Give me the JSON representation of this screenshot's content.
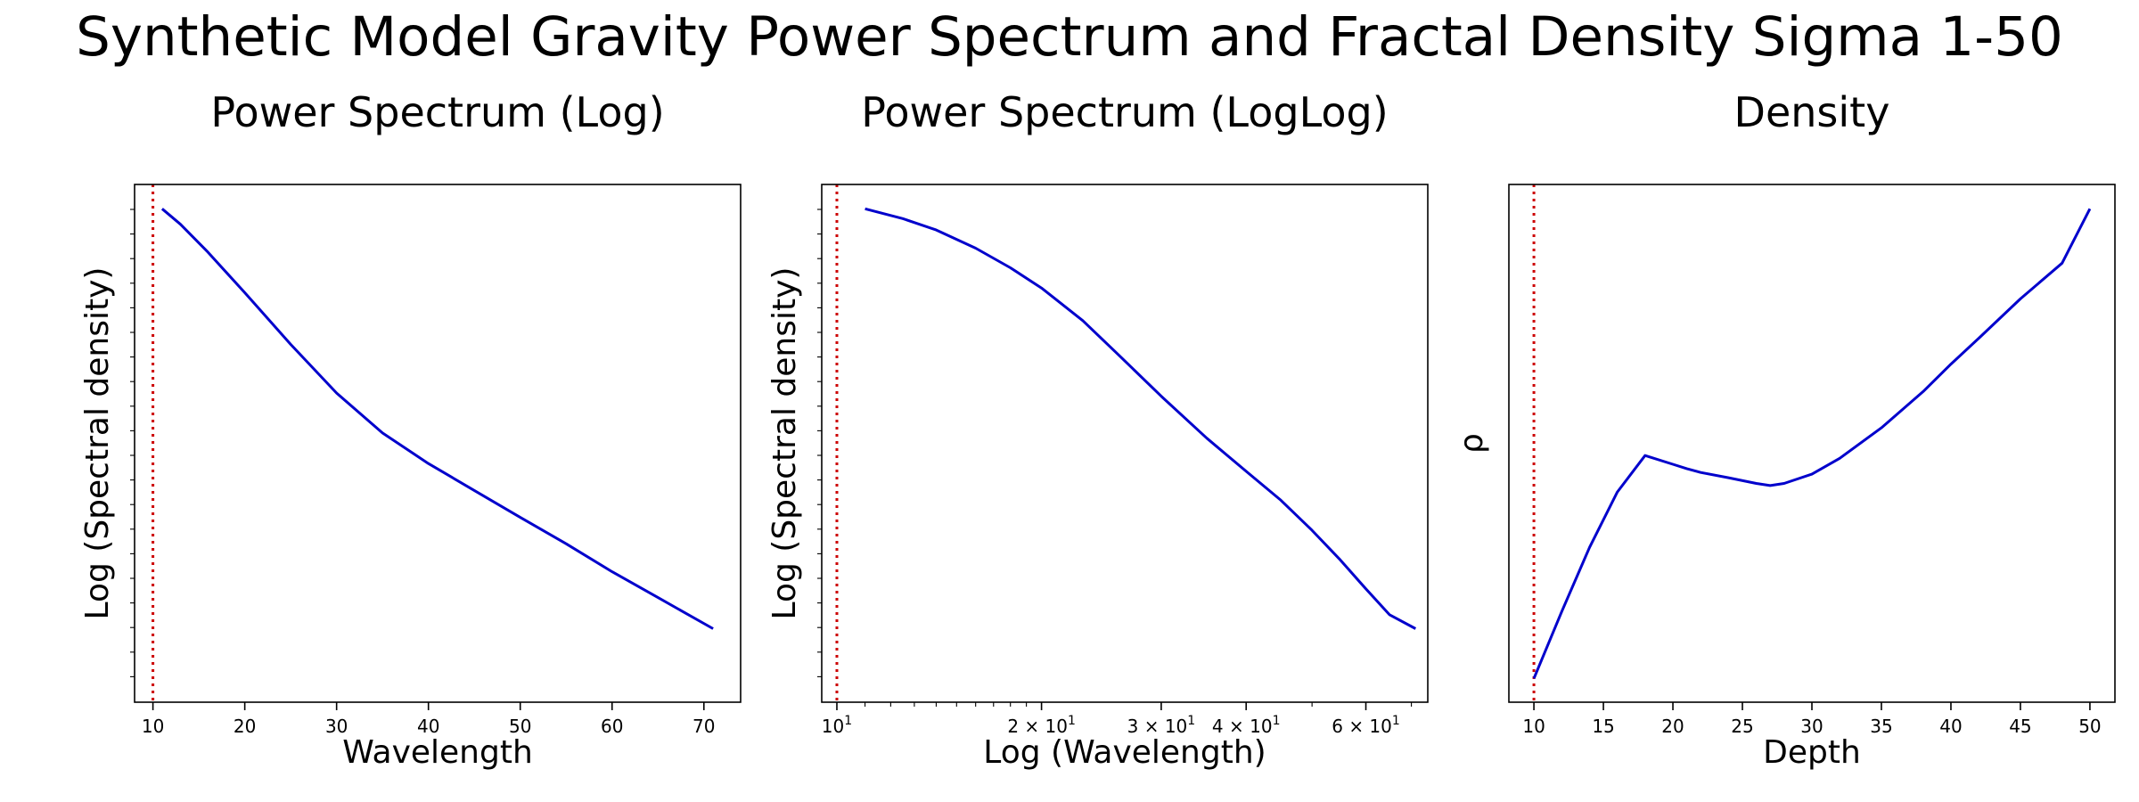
{
  "suptitle": "Synthetic Model Gravity Power Spectrum and Fractal Density Sigma 1-50",
  "chart_data": [
    {
      "type": "line",
      "title": "Power Spectrum (Log)",
      "xlabel": "Wavelength",
      "ylabel": "Log (Spectral density)",
      "xscale": "linear",
      "xlim": [
        8,
        74
      ],
      "ylim": [
        0,
        1
      ],
      "xticks": [
        10,
        20,
        30,
        40,
        50,
        60,
        70
      ],
      "xticklabels": [
        "10",
        "20",
        "30",
        "40",
        "50",
        "60",
        "70"
      ],
      "y_tick_labels_shown": false,
      "vline_x": 10,
      "series": [
        {
          "x": [
            11,
            13,
            16,
            20,
            25,
            30,
            35,
            40,
            45,
            50,
            55,
            60,
            65,
            71
          ],
          "y": [
            0.953,
            0.923,
            0.869,
            0.791,
            0.691,
            0.597,
            0.52,
            0.461,
            0.409,
            0.357,
            0.306,
            0.252,
            0.202,
            0.142
          ]
        }
      ]
    },
    {
      "type": "line",
      "title": "Power Spectrum (LogLog)",
      "xlabel": "Log (Wavelength)",
      "ylabel": "Log (Spectral density)",
      "xscale": "log",
      "xlim": [
        9.5,
        74
      ],
      "ylim": [
        0,
        1
      ],
      "xticks": [
        10,
        20,
        30,
        40,
        60
      ],
      "xticklabels": [
        "10",
        "2 × 10",
        "3 × 10",
        "4 × 10",
        "6 × 10"
      ],
      "xtick_exponent": "1",
      "y_tick_labels_shown": false,
      "vline_x": 10,
      "series": [
        {
          "x": [
            11,
            12.5,
            14,
            16,
            18,
            20,
            23,
            26,
            30,
            35,
            40,
            45,
            50,
            55,
            60,
            65,
            71
          ],
          "y": [
            0.953,
            0.934,
            0.912,
            0.877,
            0.839,
            0.8,
            0.737,
            0.67,
            0.591,
            0.51,
            0.446,
            0.39,
            0.332,
            0.275,
            0.219,
            0.169,
            0.142
          ]
        }
      ]
    },
    {
      "type": "line",
      "title": "Density",
      "xlabel": "Depth",
      "ylabel": "ρ",
      "xscale": "linear",
      "xlim": [
        8.2,
        51.8
      ],
      "ylim": [
        0,
        1
      ],
      "xticks": [
        10,
        15,
        20,
        25,
        30,
        35,
        40,
        45,
        50
      ],
      "xticklabels": [
        "10",
        "15",
        "20",
        "25",
        "30",
        "35",
        "40",
        "45",
        "50"
      ],
      "y_tick_labels_shown": false,
      "vline_x": 10,
      "series": [
        {
          "x": [
            10,
            12,
            14,
            16,
            18,
            20,
            21,
            22,
            24,
            26,
            27,
            28,
            30,
            32,
            35,
            38,
            40,
            42,
            45,
            48,
            50
          ],
          "y": [
            0.046,
            0.175,
            0.299,
            0.406,
            0.4765,
            0.4595,
            0.4512,
            0.4438,
            0.4335,
            0.4225,
            0.4185,
            0.4225,
            0.4405,
            0.471,
            0.53,
            0.6,
            0.653,
            0.703,
            0.779,
            0.848,
            0.953
          ]
        }
      ]
    }
  ]
}
